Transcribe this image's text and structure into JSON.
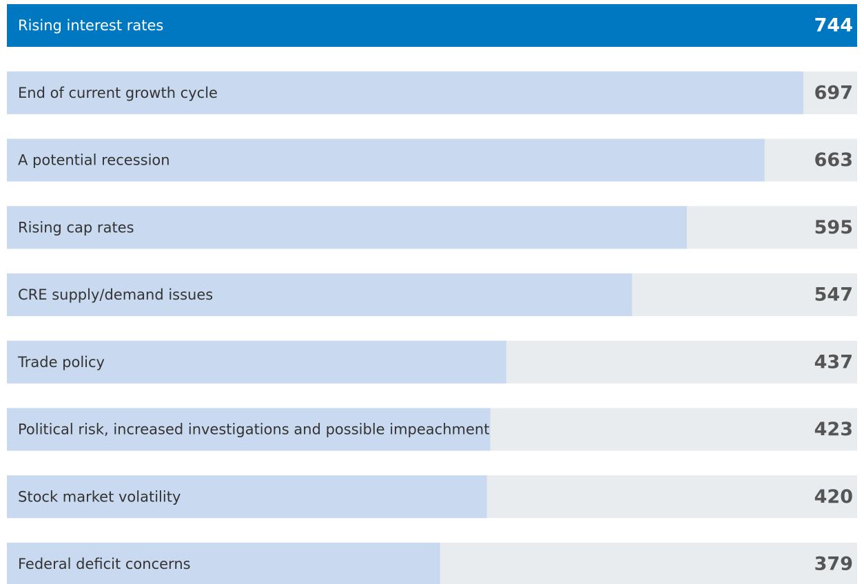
{
  "chart_data": {
    "type": "bar",
    "orientation": "horizontal",
    "categories": [
      "Rising interest rates",
      "End of current growth cycle",
      "A potential recession",
      "Rising cap rates",
      "CRE supply/demand issues",
      "Trade policy",
      "Political risk, increased investigations and possible impeachment",
      "Stock market volatility",
      "Federal deficit concerns"
    ],
    "values": [
      744,
      697,
      663,
      595,
      547,
      437,
      423,
      420,
      379
    ],
    "colors": [
      "#0078c1",
      "#c9d9ef",
      "#c9d9ef",
      "#c9d9ef",
      "#c9d9ef",
      "#c9d9ef",
      "#c9d9ef",
      "#c9d9ef",
      "#c9d9ef"
    ],
    "label_colors": [
      "#ffffff",
      "#333333",
      "#333333",
      "#333333",
      "#333333",
      "#333333",
      "#333333",
      "#333333",
      "#333333"
    ],
    "value_colors": [
      "#ffffff",
      "#555555",
      "#555555",
      "#555555",
      "#555555",
      "#555555",
      "#555555",
      "#555555",
      "#555555"
    ],
    "track_color": "#e9ecef"
  }
}
